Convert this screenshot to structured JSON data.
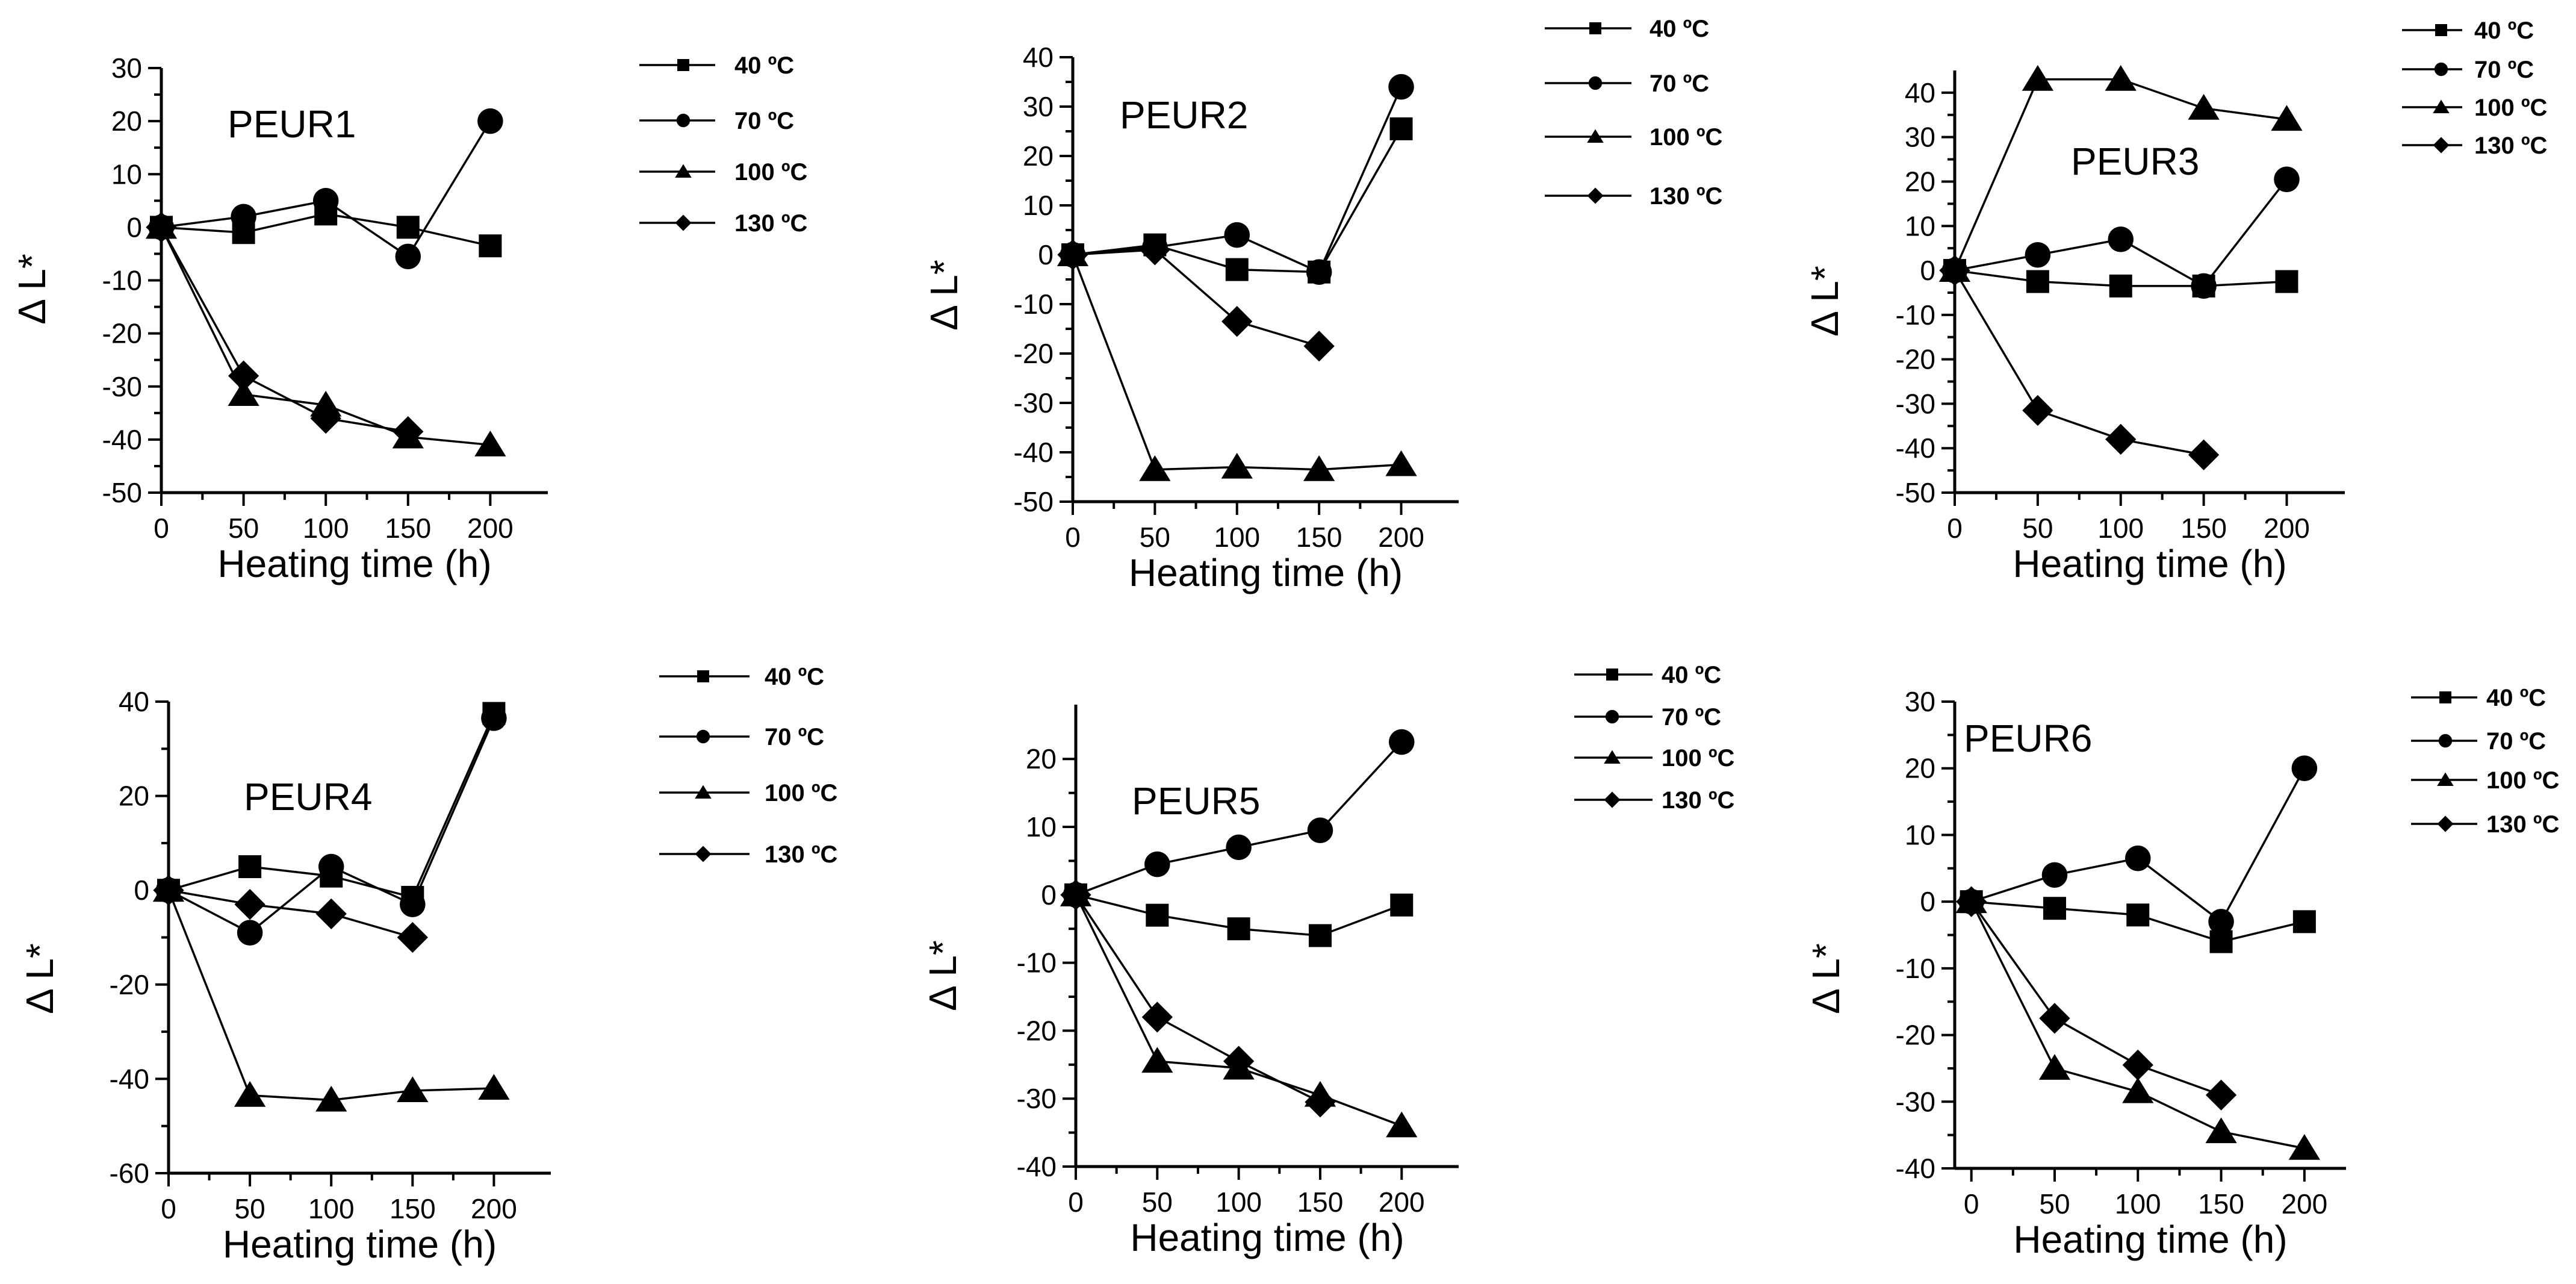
{
  "chart_data": [
    {
      "type": "line",
      "title": "PEUR1",
      "xlabel": "Heating time (h)",
      "ylabel": "Δ L*",
      "xlim": [
        0,
        235
      ],
      "ylim": [
        -50,
        30
      ],
      "xticks": [
        0,
        50,
        100,
        150,
        200
      ],
      "yticks": [
        -50,
        -40,
        -30,
        -20,
        -10,
        0,
        10,
        20,
        30
      ],
      "tick_labels_x": [
        "0",
        "50",
        "100",
        "150",
        "200"
      ],
      "tick_labels_y": [
        "-50",
        "-40",
        "-30",
        "-20",
        "-10",
        "0",
        "10",
        "20",
        "30"
      ],
      "legend_position": "top-right",
      "series": [
        {
          "name": "40 ºC",
          "marker": "square",
          "x": [
            0,
            50,
            100,
            150,
            200
          ],
          "values": [
            0,
            -1,
            2.5,
            0,
            -3.5
          ]
        },
        {
          "name": "70 ºC",
          "marker": "circle",
          "x": [
            0,
            50,
            100,
            150,
            200
          ],
          "values": [
            0,
            2,
            5,
            -5.5,
            20
          ]
        },
        {
          "name": "100 ºC",
          "marker": "triangle",
          "x": [
            0,
            50,
            100,
            150,
            200
          ],
          "values": [
            0,
            -31.5,
            -33.5,
            -39.5,
            -41
          ]
        },
        {
          "name": "130 ºC",
          "marker": "diamond",
          "x": [
            0,
            50,
            100,
            150
          ],
          "values": [
            0,
            -28,
            -36,
            -38.5
          ]
        }
      ]
    },
    {
      "type": "line",
      "title": "PEUR2",
      "xlabel": "Heating time (h)",
      "ylabel": "Δ L*",
      "xlim": [
        0,
        235
      ],
      "ylim": [
        -50,
        40
      ],
      "xticks": [
        0,
        50,
        100,
        150,
        200
      ],
      "yticks": [
        -50,
        -40,
        -30,
        -20,
        -10,
        0,
        10,
        20,
        30,
        40
      ],
      "tick_labels_x": [
        "0",
        "50",
        "100",
        "150",
        "200"
      ],
      "tick_labels_y": [
        "-50",
        "-40",
        "-30",
        "-20",
        "-10",
        "0",
        "10",
        "20",
        "30",
        "40"
      ],
      "legend_position": "top-right",
      "series": [
        {
          "name": "40 ºC",
          "marker": "square",
          "x": [
            0,
            50,
            100,
            150,
            200
          ],
          "values": [
            0,
            2,
            -3,
            -3.5,
            25.5
          ]
        },
        {
          "name": "70 ºC",
          "marker": "circle",
          "x": [
            0,
            50,
            100,
            150,
            200
          ],
          "values": [
            0,
            1.5,
            4,
            -3.5,
            34
          ]
        },
        {
          "name": "100 ºC",
          "marker": "triangle",
          "x": [
            0,
            50,
            100,
            150,
            200
          ],
          "values": [
            0,
            -43.5,
            -43,
            -43.5,
            -42.5
          ]
        },
        {
          "name": "130 ºC",
          "marker": "diamond",
          "x": [
            0,
            50,
            100,
            150
          ],
          "values": [
            0,
            1,
            -13.5,
            -18.5
          ]
        }
      ]
    },
    {
      "type": "line",
      "title": "PEUR3",
      "xlabel": "Heating time (h)",
      "ylabel": "Δ L*",
      "xlim": [
        0,
        235
      ],
      "ylim": [
        -50,
        45
      ],
      "xticks": [
        0,
        50,
        100,
        150,
        200
      ],
      "yticks": [
        -50,
        -40,
        -30,
        -20,
        -10,
        0,
        10,
        20,
        30,
        40
      ],
      "tick_labels_x": [
        "0",
        "50",
        "100",
        "150",
        "200"
      ],
      "tick_labels_y": [
        "-50",
        "-40",
        "-30",
        "-20",
        "-10",
        "0",
        "10",
        "20",
        "30",
        "40"
      ],
      "legend_position": "top-right",
      "series": [
        {
          "name": "40 ºC",
          "marker": "square",
          "x": [
            0,
            50,
            100,
            150,
            200
          ],
          "values": [
            0,
            -2.5,
            -3.5,
            -3.5,
            -2.5
          ]
        },
        {
          "name": "70 ºC",
          "marker": "circle",
          "x": [
            0,
            50,
            100,
            150,
            200
          ],
          "values": [
            0,
            3.5,
            7,
            -3.5,
            20.5
          ]
        },
        {
          "name": "100 ºC",
          "marker": "triangle",
          "x": [
            0,
            50,
            100,
            150,
            200
          ],
          "values": [
            0,
            43,
            43,
            36.5,
            34
          ]
        },
        {
          "name": "130 ºC",
          "marker": "diamond",
          "x": [
            0,
            50,
            100,
            150
          ],
          "values": [
            0,
            -31.5,
            -38,
            -41.5
          ]
        }
      ]
    },
    {
      "type": "line",
      "title": "PEUR4",
      "xlabel": "Heating time (h)",
      "ylabel": "Δ L*",
      "xlim": [
        0,
        235
      ],
      "ylim": [
        -60,
        40
      ],
      "xticks": [
        0,
        50,
        100,
        150,
        200
      ],
      "yticks": [
        -60,
        -40,
        -20,
        0,
        20,
        40
      ],
      "tick_labels_x": [
        "0",
        "50",
        "100",
        "150",
        "200"
      ],
      "tick_labels_y": [
        "-60",
        "-40",
        "-20",
        "0",
        "20",
        "40"
      ],
      "legend_position": "top-right",
      "series": [
        {
          "name": "40 ºC",
          "marker": "square",
          "x": [
            0,
            50,
            100,
            150,
            200
          ],
          "values": [
            0,
            5,
            3,
            -1.5,
            37.5
          ]
        },
        {
          "name": "70 ºC",
          "marker": "circle",
          "x": [
            0,
            50,
            100,
            150,
            200
          ],
          "values": [
            0,
            -9,
            5,
            -3,
            36.5
          ]
        },
        {
          "name": "100 ºC",
          "marker": "triangle",
          "x": [
            0,
            50,
            100,
            150,
            200
          ],
          "values": [
            0,
            -43.5,
            -44.5,
            -42.5,
            -42
          ]
        },
        {
          "name": "130 ºC",
          "marker": "diamond",
          "x": [
            0,
            50,
            100,
            150
          ],
          "values": [
            0,
            -3,
            -5,
            -10
          ]
        }
      ]
    },
    {
      "type": "line",
      "title": "PEUR5",
      "xlabel": "Heating time (h)",
      "ylabel": "Δ L*",
      "xlim": [
        0,
        235
      ],
      "ylim": [
        -40,
        28
      ],
      "xticks": [
        0,
        50,
        100,
        150,
        200
      ],
      "yticks": [
        -40,
        -30,
        -20,
        -10,
        0,
        10,
        20
      ],
      "tick_labels_x": [
        "0",
        "50",
        "100",
        "150",
        "200"
      ],
      "tick_labels_y": [
        "-40",
        "-30",
        "-20",
        "-10",
        "0",
        "10",
        "20"
      ],
      "legend_position": "top-right",
      "series": [
        {
          "name": "40 ºC",
          "marker": "square",
          "x": [
            0,
            50,
            100,
            150,
            200
          ],
          "values": [
            0,
            -3,
            -5,
            -6,
            -1.5
          ]
        },
        {
          "name": "70 ºC",
          "marker": "circle",
          "x": [
            0,
            50,
            100,
            150,
            200
          ],
          "values": [
            0,
            4.5,
            7,
            9.5,
            22.5
          ]
        },
        {
          "name": "100 ºC",
          "marker": "triangle",
          "x": [
            0,
            50,
            100,
            150,
            200
          ],
          "values": [
            0,
            -24.5,
            -25.5,
            -29.5,
            -34
          ]
        },
        {
          "name": "130 ºC",
          "marker": "diamond",
          "x": [
            0,
            50,
            100,
            150
          ],
          "values": [
            0,
            -18,
            -24.5,
            -30.5
          ]
        }
      ]
    },
    {
      "type": "line",
      "title": "PEUR6",
      "xlabel": "Heating time (h)",
      "ylabel": "Δ L*",
      "xlim": [
        -10,
        225
      ],
      "ylim": [
        -40,
        30
      ],
      "xticks": [
        0,
        50,
        100,
        150,
        200
      ],
      "yticks": [
        -40,
        -30,
        -20,
        -10,
        0,
        10,
        20,
        30
      ],
      "tick_labels_x": [
        "0",
        "50",
        "100",
        "150",
        "200"
      ],
      "tick_labels_y": [
        "-40",
        "-30",
        "-20",
        "-10",
        "0",
        "10",
        "20",
        "30"
      ],
      "legend_position": "top-right",
      "series": [
        {
          "name": "40 ºC",
          "marker": "square",
          "x": [
            0,
            50,
            100,
            150,
            200
          ],
          "values": [
            0,
            -1,
            -2,
            -6,
            -3
          ]
        },
        {
          "name": "70 ºC",
          "marker": "circle",
          "x": [
            0,
            50,
            100,
            150,
            200
          ],
          "values": [
            0,
            4,
            6.5,
            -3,
            20
          ]
        },
        {
          "name": "100 ºC",
          "marker": "triangle",
          "x": [
            0,
            50,
            100,
            150,
            200
          ],
          "values": [
            0,
            -25,
            -28.5,
            -34.5,
            -37
          ]
        },
        {
          "name": "130 ºC",
          "marker": "diamond",
          "x": [
            0,
            50,
            100,
            150
          ],
          "values": [
            0,
            -17.5,
            -24.5,
            -29
          ]
        }
      ]
    }
  ]
}
